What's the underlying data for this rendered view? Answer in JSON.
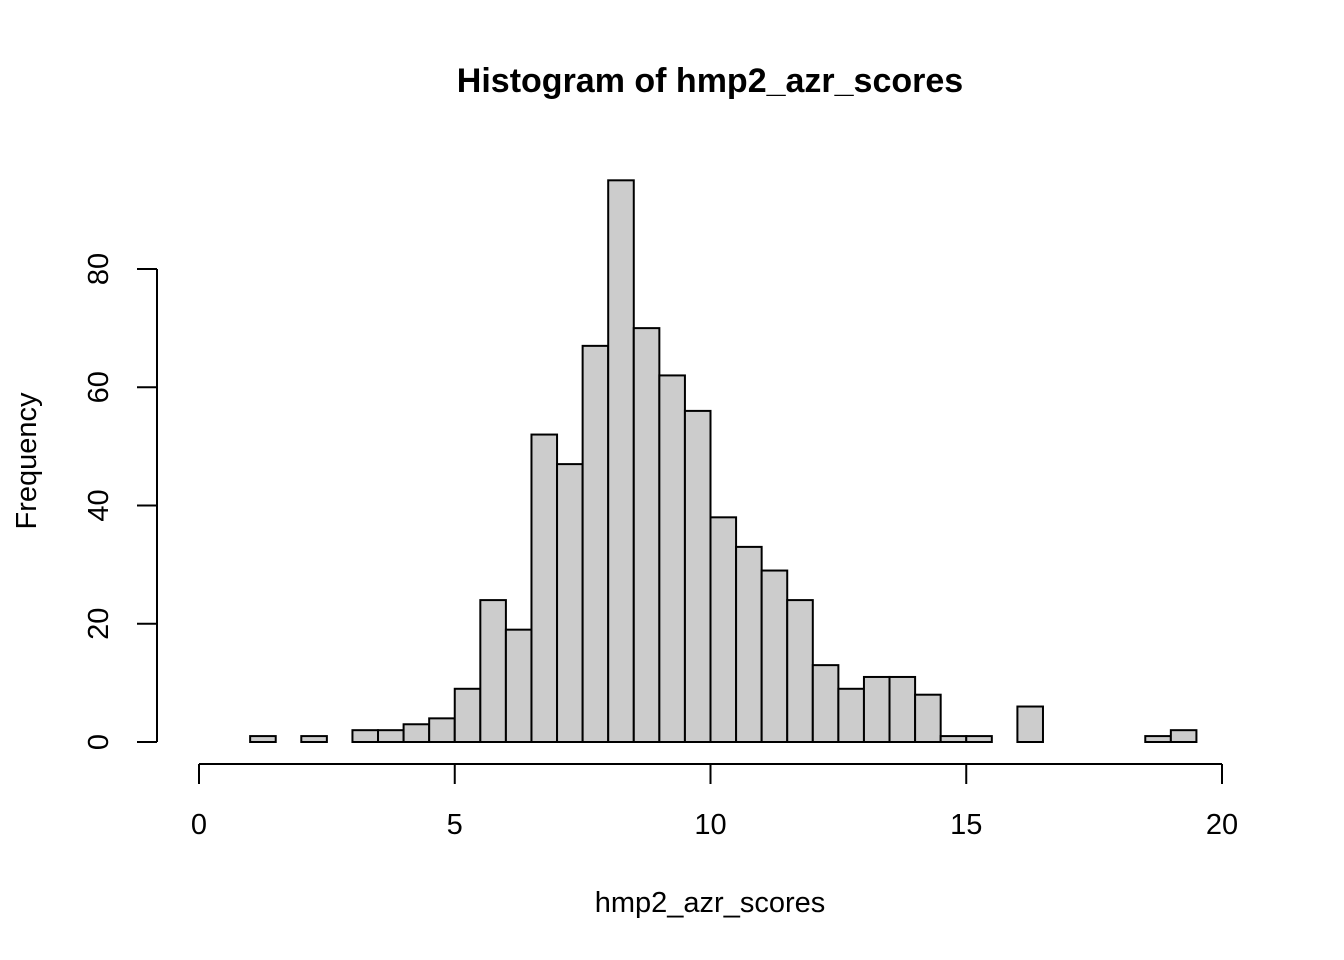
{
  "chart_data": {
    "type": "bar",
    "title": "Histogram of hmp2_azr_scores",
    "xlabel": "hmp2_azr_scores",
    "ylabel": "Frequency",
    "xlim": [
      0,
      20
    ],
    "ylim": [
      0,
      95
    ],
    "x_ticks": [
      "0",
      "5",
      "10",
      "15",
      "20"
    ],
    "y_ticks": [
      "0",
      "20",
      "40",
      "60",
      "80"
    ],
    "bin_width": 0.5,
    "bin_starts": [
      1,
      1.5,
      2,
      2.5,
      3,
      3.5,
      4,
      4.5,
      5,
      5.5,
      6,
      6.5,
      7,
      7.5,
      8,
      8.5,
      9,
      9.5,
      10,
      10.5,
      11,
      11.5,
      12,
      12.5,
      13,
      13.5,
      14,
      14.5,
      15,
      15.5,
      16,
      16.5,
      17,
      17.5,
      18,
      18.5,
      19
    ],
    "values": [
      1,
      0,
      1,
      0,
      2,
      2,
      3,
      4,
      9,
      24,
      19,
      52,
      47,
      67,
      95,
      70,
      62,
      56,
      38,
      33,
      29,
      24,
      13,
      9,
      11,
      11,
      8,
      1,
      1,
      0,
      6,
      0,
      0,
      0,
      0,
      1,
      2
    ],
    "bar_color": "#cccccc",
    "grid": false,
    "legend": "none"
  }
}
